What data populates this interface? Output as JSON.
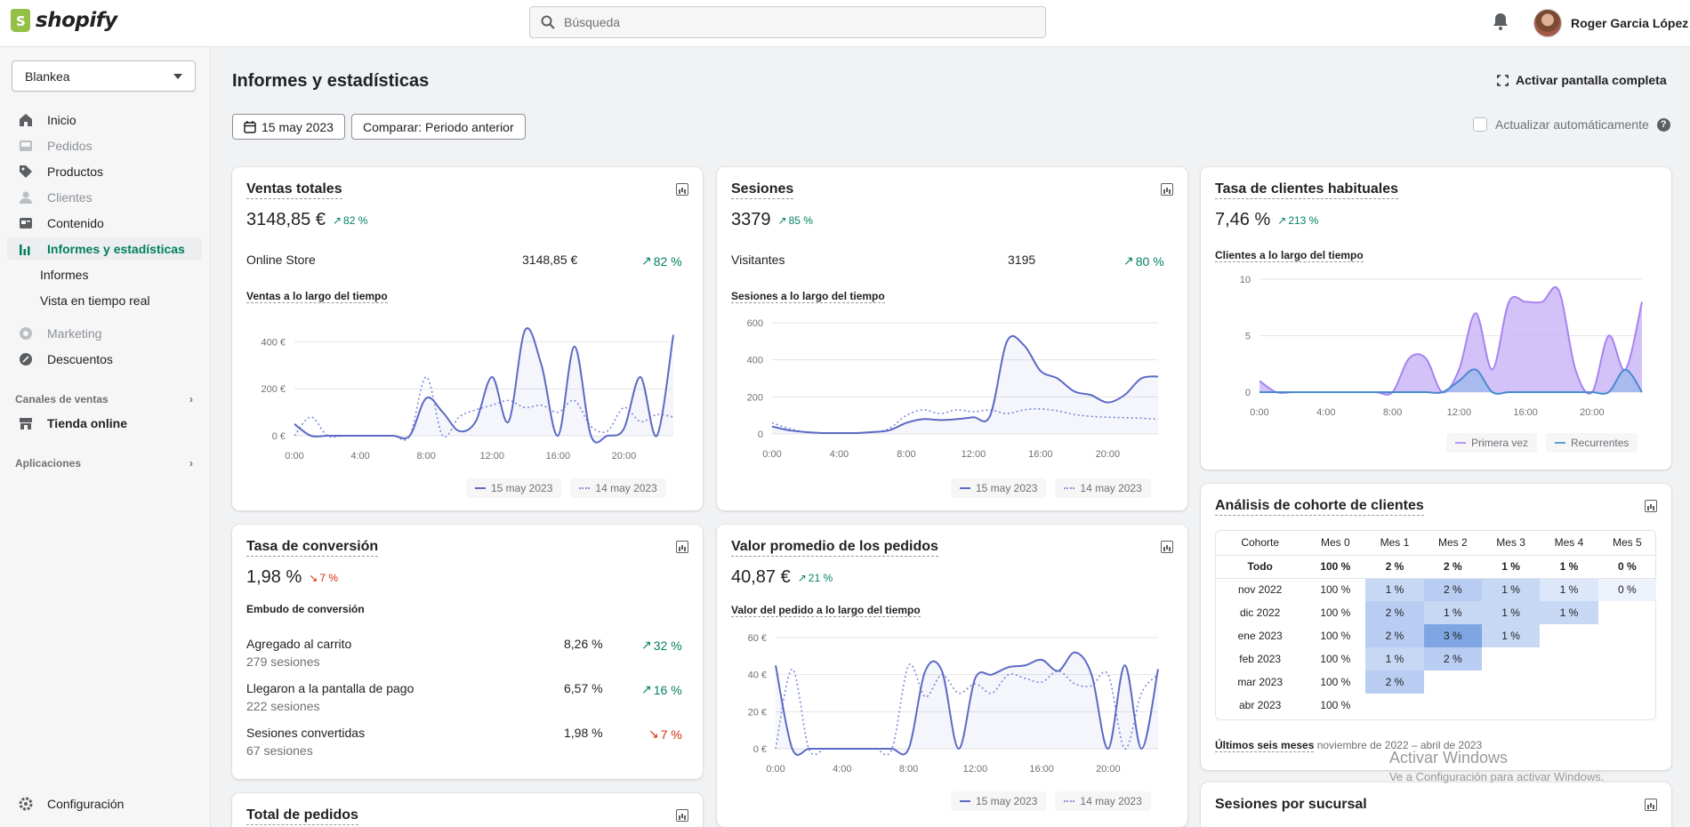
{
  "topbar": {
    "brand": "shopify",
    "search_placeholder": "Búsqueda",
    "user_name": "Roger Garcia López"
  },
  "sidebar": {
    "store": "Blankea",
    "items": [
      {
        "label": "Inicio"
      },
      {
        "label": "Pedidos"
      },
      {
        "label": "Productos"
      },
      {
        "label": "Clientes"
      },
      {
        "label": "Contenido"
      },
      {
        "label": "Informes y estadísticas"
      },
      {
        "label": "Informes"
      },
      {
        "label": "Vista en tiempo real"
      },
      {
        "label": "Marketing"
      },
      {
        "label": "Descuentos"
      }
    ],
    "sales_channels": "Canales de ventas",
    "online_store": "Tienda online",
    "apps": "Aplicaciones",
    "settings": "Configuración"
  },
  "header": {
    "title": "Informes y estadísticas",
    "fullscreen": "Activar pantalla completa",
    "date_button": "15 may 2023",
    "compare_button": "Comparar: Periodo anterior",
    "auto_update": "Actualizar automáticamente"
  },
  "colors": {
    "accent": "#5c6ac4",
    "positive": "#008060",
    "negative": "#d72c0d",
    "purple": "#b799f2"
  },
  "cards": {
    "sales": {
      "title": "Ventas totales",
      "value": "3148,85 €",
      "change": "82 %",
      "row_label": "Online Store",
      "row_value": "3148,85 €",
      "row_change": "82 %",
      "chart_title": "Ventas a lo largo del tiempo",
      "legend_current": "15 may 2023",
      "legend_prev": "14 may 2023"
    },
    "sessions": {
      "title": "Sesiones",
      "value": "3379",
      "change": "85 %",
      "row_label": "Visitantes",
      "row_value": "3195",
      "row_change": "80 %",
      "chart_title": "Sesiones a lo largo del tiempo",
      "legend_current": "15 may 2023",
      "legend_prev": "14 may 2023"
    },
    "returning": {
      "title": "Tasa de clientes habituales",
      "value": "7,46 %",
      "change": "213 %",
      "chart_title": "Clientes a lo largo del tiempo",
      "legend_first": "Primera vez",
      "legend_returning": "Recurrentes"
    },
    "conversion": {
      "title": "Tasa de conversión",
      "value": "1,98 %",
      "change": "7 %",
      "funnel_title": "Embudo de conversión",
      "rows": [
        {
          "label": "Agregado al carrito",
          "sub": "279 sesiones",
          "value": "8,26 %",
          "change": "32 %"
        },
        {
          "label": "Llegaron a la pantalla de pago",
          "sub": "222 sesiones",
          "value": "6,57 %",
          "change": "16 %"
        },
        {
          "label": "Sesiones convertidas",
          "sub": "67 sesiones",
          "value": "1,98 %",
          "change": "7 %"
        }
      ]
    },
    "aov": {
      "title": "Valor promedio de los pedidos",
      "value": "40,87 €",
      "change": "21 %",
      "chart_title": "Valor del pedido a lo largo del tiempo",
      "legend_current": "15 may 2023",
      "legend_prev": "14 may 2023"
    },
    "cohort": {
      "title": "Análisis de cohorte de clientes",
      "headers": [
        "Cohorte",
        "Mes 0",
        "Mes 1",
        "Mes 2",
        "Mes 3",
        "Mes 4",
        "Mes 5"
      ],
      "rows": [
        [
          "Todo",
          "100 %",
          "2 %",
          "2 %",
          "1 %",
          "1 %",
          "0 %"
        ],
        [
          "nov 2022",
          "100 %",
          "1 %",
          "2 %",
          "1 %",
          "1 %",
          "0 %"
        ],
        [
          "dic 2022",
          "100 %",
          "2 %",
          "1 %",
          "1 %",
          "1 %",
          ""
        ],
        [
          "ene 2023",
          "100 %",
          "2 %",
          "3 %",
          "1 %",
          "",
          ""
        ],
        [
          "feb 2023",
          "100 %",
          "1 %",
          "2 %",
          "",
          "",
          ""
        ],
        [
          "mar 2023",
          "100 %",
          "2 %",
          "",
          "",
          "",
          ""
        ],
        [
          "abr 2023",
          "100 %",
          "",
          "",
          "",
          "",
          ""
        ]
      ],
      "footer_bold": "Últimos seis meses",
      "footer_range": "noviembre de 2022 – abril de 2023"
    },
    "orders": {
      "title": "Total de pedidos"
    },
    "branch": {
      "title": "Sesiones por sucursal"
    }
  },
  "watermark": {
    "line1": "Activar Windows",
    "line2": "Ve a Configuración para activar Windows."
  },
  "chart_data": [
    {
      "type": "line",
      "title": "Ventas a lo largo del tiempo",
      "x_ticks": [
        "0:00",
        "4:00",
        "8:00",
        "12:00",
        "16:00",
        "20:00"
      ],
      "y_ticks": [
        "0 €",
        "200 €",
        "400 €"
      ],
      "ylim": [
        0,
        500
      ],
      "x": [
        0,
        1,
        2,
        3,
        4,
        5,
        6,
        7,
        8,
        9,
        10,
        11,
        12,
        13,
        14,
        15,
        16,
        17,
        18,
        19,
        20,
        21,
        22,
        23
      ],
      "series": [
        {
          "name": "15 may 2023",
          "values": [
            50,
            0,
            0,
            0,
            0,
            0,
            0,
            0,
            160,
            100,
            20,
            60,
            250,
            60,
            450,
            300,
            0,
            380,
            0,
            0,
            30,
            250,
            0,
            430
          ]
        },
        {
          "name": "14 may 2023",
          "values": [
            0,
            80,
            0,
            0,
            0,
            0,
            0,
            0,
            250,
            0,
            80,
            110,
            130,
            150,
            120,
            130,
            100,
            150,
            40,
            20,
            120,
            60,
            90,
            80
          ]
        }
      ]
    },
    {
      "type": "line",
      "title": "Sesiones a lo largo del tiempo",
      "x_ticks": [
        "0:00",
        "4:00",
        "8:00",
        "12:00",
        "16:00",
        "20:00"
      ],
      "y_ticks": [
        "0",
        "200",
        "400",
        "600"
      ],
      "ylim": [
        0,
        600
      ],
      "x": [
        0,
        1,
        2,
        3,
        4,
        5,
        6,
        7,
        8,
        9,
        10,
        11,
        12,
        13,
        14,
        15,
        16,
        17,
        18,
        19,
        20,
        21,
        22,
        23
      ],
      "series": [
        {
          "name": "15 may 2023",
          "values": [
            40,
            20,
            10,
            5,
            5,
            5,
            10,
            20,
            60,
            80,
            75,
            80,
            90,
            100,
            500,
            480,
            340,
            300,
            230,
            210,
            170,
            210,
            300,
            310
          ]
        },
        {
          "name": "14 may 2023",
          "values": [
            60,
            30,
            10,
            5,
            5,
            5,
            10,
            30,
            100,
            130,
            110,
            130,
            120,
            130,
            110,
            130,
            135,
            125,
            105,
            95,
            90,
            88,
            85,
            80
          ]
        }
      ]
    },
    {
      "type": "area",
      "title": "Clientes a lo largo del tiempo",
      "x_ticks": [
        "0:00",
        "4:00",
        "8:00",
        "12:00",
        "16:00",
        "20:00"
      ],
      "y_ticks": [
        "0",
        "5",
        "10"
      ],
      "ylim": [
        0,
        10
      ],
      "x": [
        0,
        1,
        2,
        3,
        4,
        5,
        6,
        7,
        8,
        9,
        10,
        11,
        12,
        13,
        14,
        15,
        16,
        17,
        18,
        19,
        20,
        21,
        22,
        23
      ],
      "series": [
        {
          "name": "Primera vez",
          "values": [
            1,
            0,
            0,
            0,
            0,
            0,
            0,
            0,
            0,
            3,
            3,
            0,
            2,
            7,
            2,
            8,
            8,
            8,
            9,
            2,
            0,
            5,
            2,
            8
          ]
        },
        {
          "name": "Recurrentes",
          "values": [
            0,
            0,
            0,
            0,
            0,
            0,
            0,
            0,
            0,
            0,
            0,
            0,
            1,
            2,
            0,
            0,
            0,
            0,
            0,
            0,
            0,
            0,
            2,
            0
          ]
        }
      ]
    },
    {
      "type": "line",
      "title": "Valor del pedido a lo largo del tiempo",
      "x_ticks": [
        "0:00",
        "4:00",
        "8:00",
        "12:00",
        "16:00",
        "20:00"
      ],
      "y_ticks": [
        "0 €",
        "20 €",
        "40 €",
        "60 €"
      ],
      "ylim": [
        0,
        60
      ],
      "x": [
        0,
        1,
        2,
        3,
        4,
        5,
        6,
        7,
        8,
        9,
        10,
        11,
        12,
        13,
        14,
        15,
        16,
        17,
        18,
        19,
        20,
        21,
        22,
        23
      ],
      "series": [
        {
          "name": "15 may 2023",
          "values": [
            45,
            0,
            0,
            0,
            0,
            0,
            0,
            0,
            0,
            42,
            42,
            0,
            38,
            40,
            44,
            45,
            48,
            42,
            52,
            40,
            0,
            45,
            0,
            43
          ]
        },
        {
          "name": "14 may 2023",
          "values": [
            0,
            43,
            0,
            0,
            0,
            0,
            0,
            0,
            45,
            28,
            40,
            30,
            35,
            30,
            40,
            38,
            36,
            42,
            35,
            34,
            40,
            0,
            30,
            40
          ]
        }
      ]
    }
  ]
}
